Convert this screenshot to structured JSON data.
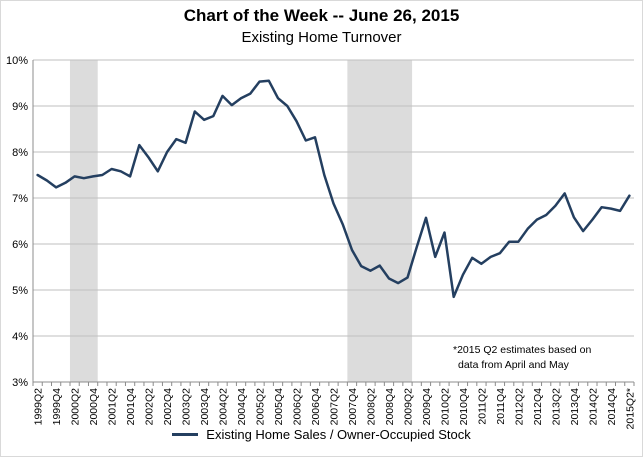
{
  "chart_data": {
    "type": "line",
    "title": "Chart of the Week -- June 26, 2015",
    "subtitle": "Existing Home Turnover",
    "xlabel": "",
    "ylabel": "",
    "ylim": [
      3,
      10
    ],
    "y_ticks": [
      "3%",
      "4%",
      "5%",
      "6%",
      "7%",
      "8%",
      "9%",
      "10%"
    ],
    "grid": "horizontal",
    "legend_position": "bottom",
    "x_labels": [
      "1999Q2",
      "1999Q4",
      "2000Q2",
      "2000Q4",
      "2001Q2",
      "2001Q4",
      "2002Q2",
      "2002Q4",
      "2003Q2",
      "2003Q4",
      "2004Q2",
      "2004Q4",
      "2005Q2",
      "2005Q4",
      "2006Q2",
      "2006Q4",
      "2007Q2",
      "2007Q4",
      "2008Q2",
      "2008Q4",
      "2009Q2",
      "2009Q4",
      "2010Q2",
      "2010Q4",
      "2011Q2",
      "2011Q4",
      "2012Q2",
      "2012Q4",
      "2013Q2",
      "2013Q4",
      "2014Q2",
      "2014Q4",
      "2015Q2*"
    ],
    "series": [
      {
        "name": "Existing Home Sales / Owner-Occupied Stock",
        "color": "#243f60",
        "values": [
          7.5,
          7.38,
          7.23,
          7.33,
          7.47,
          7.43,
          7.47,
          7.5,
          7.63,
          7.58,
          7.47,
          8.15,
          7.88,
          7.58,
          8.0,
          8.28,
          8.2,
          8.88,
          8.7,
          8.78,
          9.22,
          9.02,
          9.17,
          9.27,
          9.53,
          9.55,
          9.17,
          9.0,
          8.67,
          8.25,
          8.32,
          7.5,
          6.88,
          6.43,
          5.87,
          5.52,
          5.42,
          5.53,
          5.25,
          5.15,
          5.27,
          5.93,
          6.57,
          5.72,
          6.25,
          4.85,
          5.33,
          5.7,
          5.57,
          5.72,
          5.8,
          6.05,
          6.05,
          6.33,
          6.53,
          6.63,
          6.83,
          7.1,
          6.58,
          6.28,
          6.53,
          6.8,
          6.77,
          6.72,
          7.05
        ]
      }
    ],
    "recessions": [
      {
        "start": "2000Q2",
        "end": "2000Q4"
      },
      {
        "start": "2007Q4",
        "end": "2009Q2"
      }
    ]
  },
  "annotation": {
    "line1": "*2015 Q2 estimates based on",
    "line2": "data from April and May"
  }
}
